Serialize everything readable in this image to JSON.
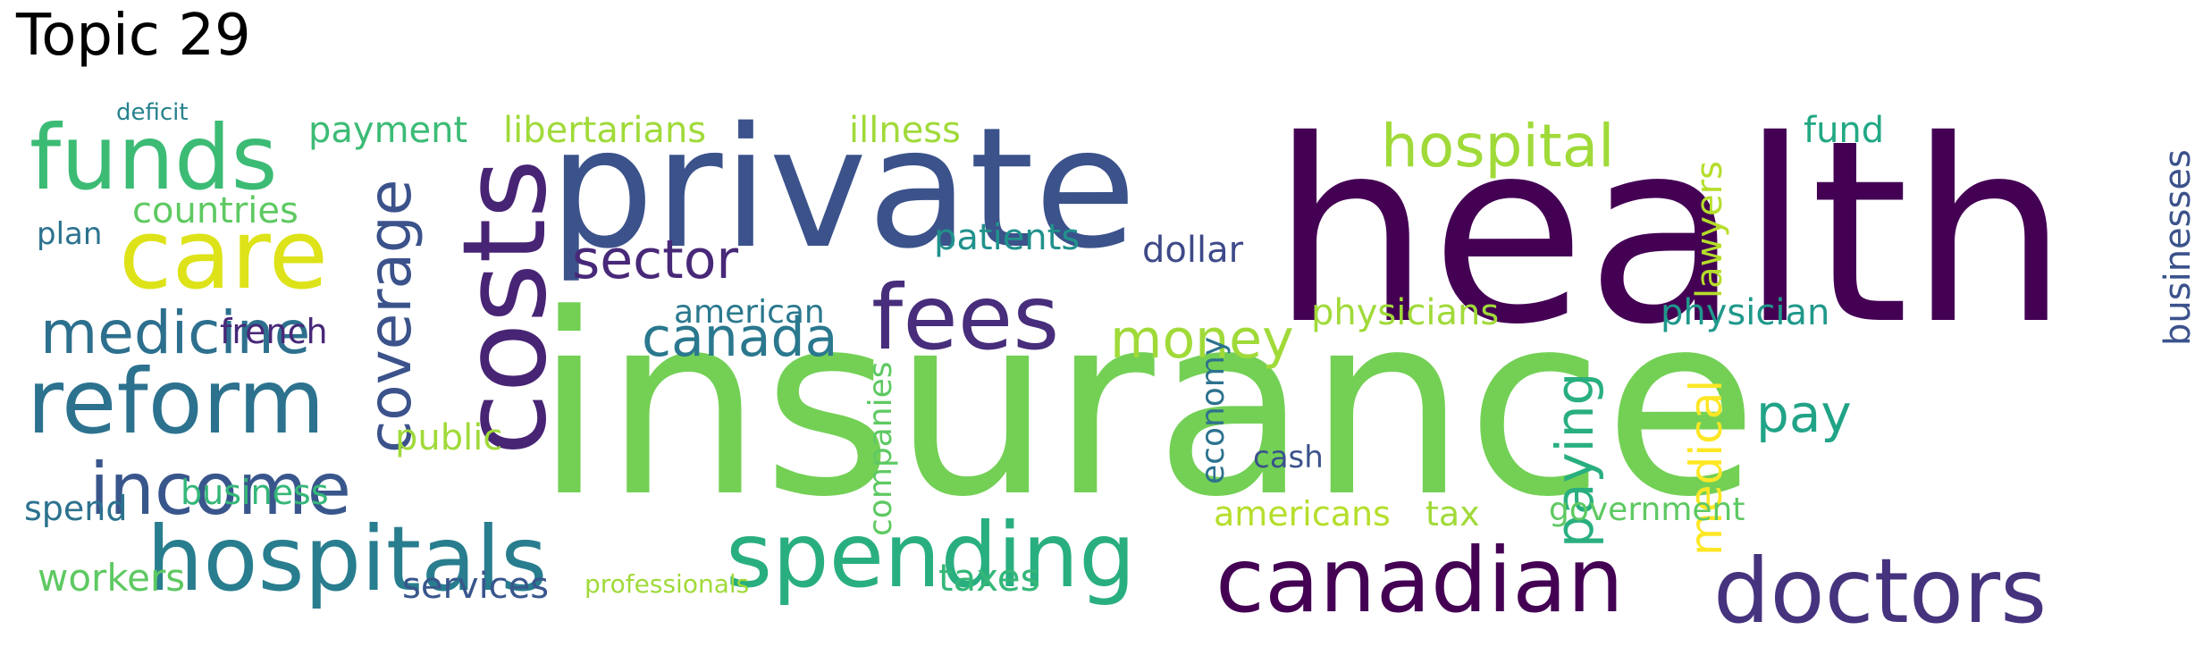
{
  "title": "Topic 29",
  "words": [
    {
      "text": "insurance",
      "color": "#73d055"
    },
    {
      "text": "health",
      "color": "#440154"
    },
    {
      "text": "private",
      "color": "#3b528b"
    },
    {
      "text": "costs",
      "color": "#482475"
    },
    {
      "text": "care",
      "color": "#dde318"
    },
    {
      "text": "funds",
      "color": "#3cbb75"
    },
    {
      "text": "reform",
      "color": "#2c728e"
    },
    {
      "text": "hospitals",
      "color": "#287d8e"
    },
    {
      "text": "spending",
      "color": "#29af7f"
    },
    {
      "text": "canadian",
      "color": "#440154"
    },
    {
      "text": "doctors",
      "color": "#46337e"
    },
    {
      "text": "fees",
      "color": "#472d7b"
    },
    {
      "text": "income",
      "color": "#39568c"
    },
    {
      "text": "medicine",
      "color": "#2d708e"
    },
    {
      "text": "coverage",
      "color": "#3b528b"
    },
    {
      "text": "hospital",
      "color": "#a0da39"
    },
    {
      "text": "sector",
      "color": "#482878"
    },
    {
      "text": "canada",
      "color": "#2a788e"
    },
    {
      "text": "money",
      "color": "#a0da39"
    },
    {
      "text": "pay",
      "color": "#20a386"
    },
    {
      "text": "paying",
      "color": "#29af7f"
    },
    {
      "text": "medical",
      "color": "#fde725"
    },
    {
      "text": "payment",
      "color": "#3cbb75"
    },
    {
      "text": "libertarians",
      "color": "#a0da39"
    },
    {
      "text": "illness",
      "color": "#a0da39"
    },
    {
      "text": "fund",
      "color": "#22a884"
    },
    {
      "text": "lawyers",
      "color": "#b5de2b"
    },
    {
      "text": "businesses",
      "color": "#3b528b"
    },
    {
      "text": "countries",
      "color": "#5ec962"
    },
    {
      "text": "deficit",
      "color": "#26828e"
    },
    {
      "text": "plan",
      "color": "#2c728e"
    },
    {
      "text": "patients",
      "color": "#21918c"
    },
    {
      "text": "dollar",
      "color": "#3e4989"
    },
    {
      "text": "physicians",
      "color": "#a0da39"
    },
    {
      "text": "physician",
      "color": "#1f988b"
    },
    {
      "text": "american",
      "color": "#2a788e"
    },
    {
      "text": "french",
      "color": "#482878"
    },
    {
      "text": "economy",
      "color": "#2c728e"
    },
    {
      "text": "companies",
      "color": "#5ec962"
    },
    {
      "text": "public",
      "color": "#a0da39"
    },
    {
      "text": "cash",
      "color": "#3b528b"
    },
    {
      "text": "business",
      "color": "#35b779"
    },
    {
      "text": "spend",
      "color": "#2c728e"
    },
    {
      "text": "americans",
      "color": "#b5de2b"
    },
    {
      "text": "tax",
      "color": "#a0da39"
    },
    {
      "text": "government",
      "color": "#5ec962"
    },
    {
      "text": "workers",
      "color": "#5ec962"
    },
    {
      "text": "services",
      "color": "#39568c"
    },
    {
      "text": "professionals",
      "color": "#a0da39"
    },
    {
      "text": "taxes",
      "color": "#35b779"
    }
  ]
}
